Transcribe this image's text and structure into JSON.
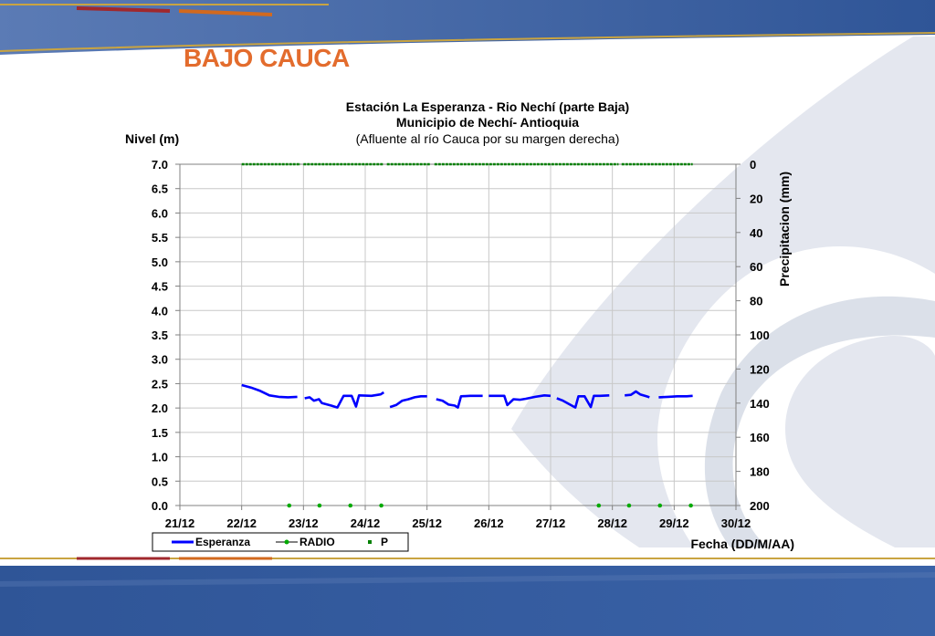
{
  "header": {
    "section_title": "BAJO CAUCA"
  },
  "colors": {
    "accent": "#e36c2d",
    "band": "#2f5597",
    "level_line": "#0000ff",
    "precip": "#008000",
    "radio": "#00aa00"
  },
  "chart_data": {
    "type": "line",
    "title_lines": [
      "Estación La Esperanza - Rio Nechí  (parte Baja)",
      "Municipio de Nechí- Antioquia",
      "(Afluente al río Cauca por su margen derecha)"
    ],
    "ylabel": "Nivel (m)",
    "y2label": "Precipitacion (mm)",
    "xlabel": "Fecha (DD/M/AA)",
    "x_ticks": [
      "21/12",
      "22/12",
      "23/12",
      "24/12",
      "25/12",
      "26/12",
      "27/12",
      "28/12",
      "29/12",
      "30/12"
    ],
    "xlim": [
      0,
      9
    ],
    "ylim": [
      0,
      7
    ],
    "y_ticks": [
      "0.0",
      "0.5",
      "1.0",
      "1.5",
      "2.0",
      "2.5",
      "3.0",
      "3.5",
      "4.0",
      "4.5",
      "5.0",
      "5.5",
      "6.0",
      "6.5",
      "7.0"
    ],
    "y2lim": [
      0,
      200
    ],
    "y2_reversed": true,
    "y2_ticks": [
      "0",
      "20",
      "40",
      "60",
      "80",
      "100",
      "120",
      "140",
      "160",
      "180",
      "200"
    ],
    "grid": true,
    "legend": [
      "Esperanza",
      "RADIO",
      "P"
    ],
    "legend_position": "bottom-left",
    "series": [
      {
        "name": "Esperanza",
        "axis": "left",
        "segments": [
          [
            [
              1.0,
              2.47
            ],
            [
              1.15,
              2.42
            ],
            [
              1.3,
              2.35
            ],
            [
              1.45,
              2.26
            ],
            [
              1.6,
              2.23
            ],
            [
              1.75,
              2.22
            ],
            [
              1.9,
              2.23
            ]
          ],
          [
            [
              2.02,
              2.2
            ],
            [
              2.1,
              2.22
            ],
            [
              2.17,
              2.15
            ],
            [
              2.25,
              2.18
            ],
            [
              2.3,
              2.1
            ],
            [
              2.45,
              2.05
            ],
            [
              2.55,
              2.01
            ],
            [
              2.65,
              2.25
            ],
            [
              2.78,
              2.25
            ],
            [
              2.85,
              2.03
            ],
            [
              2.9,
              2.26
            ],
            [
              3.1,
              2.25
            ],
            [
              3.25,
              2.28
            ],
            [
              3.3,
              2.32
            ]
          ],
          [
            [
              3.4,
              2.02
            ],
            [
              3.5,
              2.06
            ],
            [
              3.6,
              2.15
            ],
            [
              3.7,
              2.18
            ],
            [
              3.8,
              2.22
            ],
            [
              3.9,
              2.24
            ],
            [
              4.0,
              2.24
            ]
          ],
          [
            [
              4.15,
              2.18
            ],
            [
              4.25,
              2.15
            ],
            [
              4.35,
              2.07
            ],
            [
              4.45,
              2.05
            ],
            [
              4.5,
              2.01
            ],
            [
              4.55,
              2.24
            ],
            [
              4.7,
              2.25
            ],
            [
              4.9,
              2.25
            ]
          ],
          [
            [
              5.0,
              2.25
            ],
            [
              5.25,
              2.25
            ],
            [
              5.3,
              2.06
            ],
            [
              5.4,
              2.18
            ],
            [
              5.5,
              2.17
            ],
            [
              5.6,
              2.19
            ],
            [
              5.75,
              2.23
            ],
            [
              5.9,
              2.26
            ],
            [
              6.0,
              2.25
            ]
          ],
          [
            [
              6.1,
              2.2
            ],
            [
              6.2,
              2.15
            ],
            [
              6.3,
              2.08
            ],
            [
              6.4,
              2.01
            ],
            [
              6.45,
              2.24
            ],
            [
              6.55,
              2.24
            ],
            [
              6.65,
              2.02
            ],
            [
              6.7,
              2.25
            ],
            [
              6.8,
              2.25
            ],
            [
              6.95,
              2.26
            ]
          ],
          [
            [
              7.2,
              2.26
            ],
            [
              7.3,
              2.27
            ],
            [
              7.38,
              2.34
            ],
            [
              7.45,
              2.28
            ],
            [
              7.55,
              2.24
            ],
            [
              7.6,
              2.22
            ]
          ],
          [
            [
              7.75,
              2.22
            ],
            [
              7.9,
              2.23
            ],
            [
              8.05,
              2.24
            ],
            [
              8.2,
              2.24
            ],
            [
              8.3,
              2.25
            ]
          ]
        ]
      },
      {
        "name": "RADIO",
        "axis": "left",
        "x": [
          1.77,
          2.26,
          2.76,
          3.26,
          6.78,
          7.27,
          7.77,
          8.27
        ],
        "y": [
          0,
          0,
          0,
          0,
          0,
          0,
          0,
          0
        ]
      },
      {
        "name": "P",
        "axis": "right",
        "segments": [
          [
            [
              1.0,
              0
            ],
            [
              1.95,
              0
            ]
          ],
          [
            [
              2.0,
              0
            ],
            [
              3.3,
              0
            ]
          ],
          [
            [
              3.35,
              0
            ],
            [
              4.05,
              0
            ]
          ],
          [
            [
              4.12,
              0
            ],
            [
              7.1,
              0
            ]
          ],
          [
            [
              7.15,
              0
            ],
            [
              8.3,
              0
            ]
          ]
        ]
      }
    ]
  }
}
